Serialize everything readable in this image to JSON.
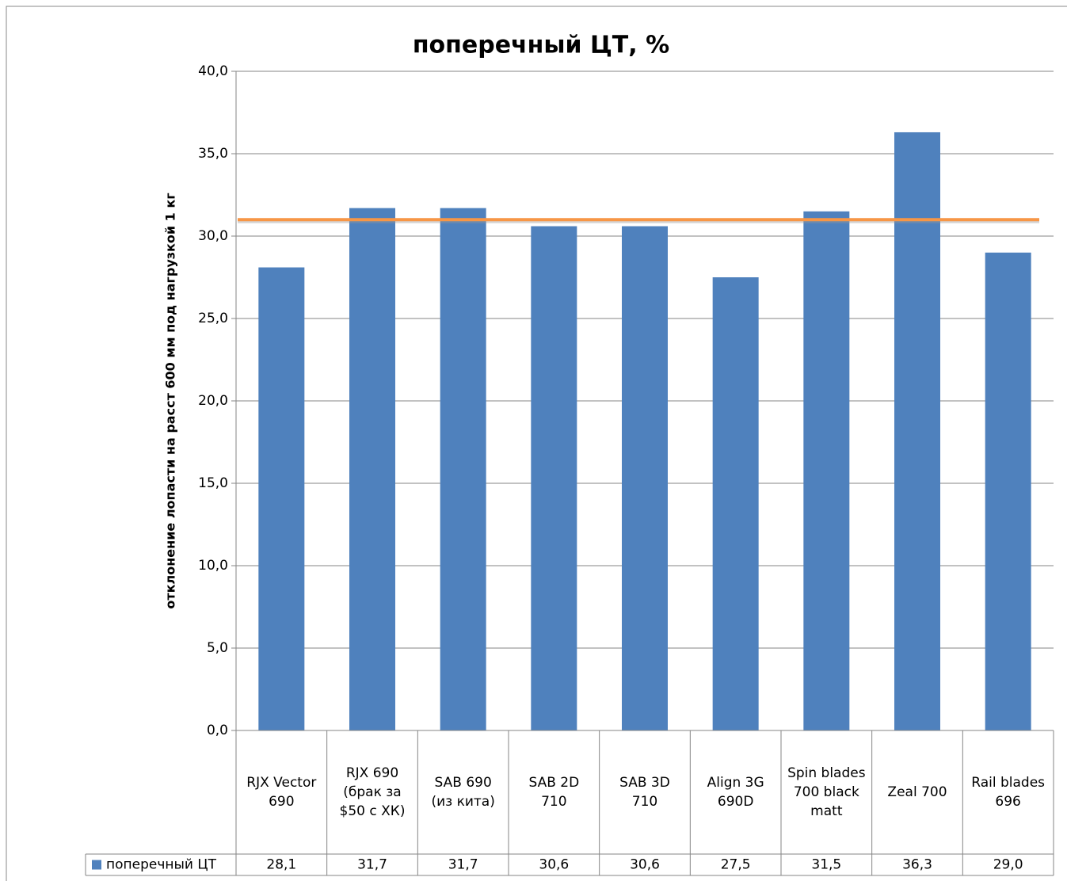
{
  "chart_data": {
    "type": "bar",
    "title": "поперечный ЦТ, %",
    "y_label": "отклонение лопасти на расст 600 мм под нагрузкой 1 кг",
    "categories": [
      "RJX Vector 690",
      "RJX 690 (брак за $50 с ХК)",
      "SAB 690 (из кита)",
      "SAB 2D 710",
      "SAB 3D 710",
      "Align 3G 690D",
      "Spin blades 700 black matt",
      "Zeal 700",
      "Rail blades 696"
    ],
    "series": [
      {
        "name": "поперечный ЦТ",
        "color": "#4f81bd",
        "values": [
          28.1,
          31.7,
          31.7,
          30.6,
          30.6,
          27.5,
          31.5,
          36.3,
          29.0
        ],
        "value_labels": [
          "28,1",
          "31,7",
          "31,7",
          "30,6",
          "30,6",
          "27,5",
          "31,5",
          "36,3",
          "29,0"
        ]
      }
    ],
    "reference_line": {
      "value": 31.0,
      "color": "#f79646"
    },
    "ylim": [
      0,
      40
    ],
    "yticks": [
      {
        "value": 0,
        "label": "0,0"
      },
      {
        "value": 5,
        "label": "5,0"
      },
      {
        "value": 10,
        "label": "10,0"
      },
      {
        "value": 15,
        "label": "15,0"
      },
      {
        "value": 20,
        "label": "20,0"
      },
      {
        "value": 25,
        "label": "25,0"
      },
      {
        "value": 30,
        "label": "30,0"
      },
      {
        "value": 35,
        "label": "35,0"
      },
      {
        "value": 40,
        "label": "40,0"
      }
    ],
    "grid": true,
    "legend": "data-table"
  }
}
